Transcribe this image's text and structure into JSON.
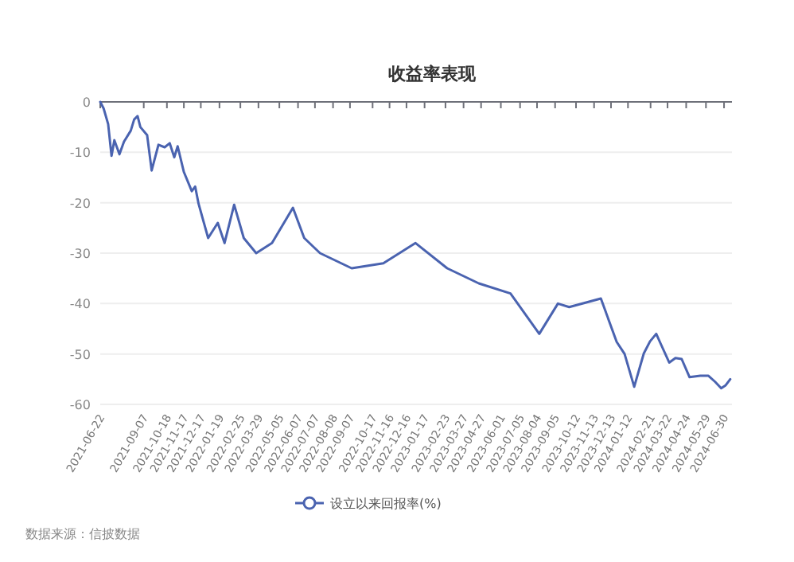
{
  "chart_data": {
    "type": "line",
    "title": "收益率表现",
    "annotations": [
      "数据来源：信披数据"
    ],
    "x": [
      "2021-06-22",
      "2021-06-28",
      "2021-07-06",
      "2021-07-12",
      "2021-07-17",
      "2021-07-26",
      "2021-08-03",
      "2021-08-15",
      "2021-08-21",
      "2021-08-27",
      "2021-09-01",
      "2021-09-13",
      "2021-09-21",
      "2021-10-03",
      "2021-10-14",
      "2021-10-23",
      "2021-10-31",
      "2021-11-06",
      "2021-11-17",
      "2021-12-01",
      "2021-12-07",
      "2021-12-13",
      "2021-12-30",
      "2022-01-16",
      "2022-01-28",
      "2022-02-14",
      "2022-03-03",
      "2022-03-25",
      "2022-04-22",
      "2022-05-29",
      "2022-06-18",
      "2022-07-16",
      "2022-09-10",
      "2022-11-05",
      "2023-01-01",
      "2023-02-26",
      "2023-04-23",
      "2023-06-18",
      "2023-08-08",
      "2023-09-10",
      "2023-09-30",
      "2023-11-25",
      "2023-12-23",
      "2024-01-06",
      "2024-01-23",
      "2024-02-09",
      "2024-02-20",
      "2024-03-02",
      "2024-03-10",
      "2024-03-25",
      "2024-04-05",
      "2024-04-16",
      "2024-04-30",
      "2024-05-19",
      "2024-06-02",
      "2024-06-14",
      "2024-06-25",
      "2024-07-03",
      "2024-07-11"
    ],
    "series": [
      {
        "name": "设立以来回报率(%)",
        "color": "#4a63b0",
        "values": [
          0,
          -1.3,
          -4.4,
          -10.7,
          -7.6,
          -10.4,
          -7.9,
          -5.7,
          -3.5,
          -2.8,
          -5,
          -6.6,
          -13.6,
          -8.5,
          -9,
          -8.2,
          -11,
          -8.8,
          -13.9,
          -17.7,
          -16.8,
          -20.2,
          -27,
          -24,
          -28,
          -20.4,
          -27,
          -30,
          -28,
          -21,
          -27,
          -30,
          -33,
          -32,
          -28,
          -33,
          -36,
          -38,
          -46,
          -40,
          -40.7,
          -39,
          -47.6,
          -50,
          -56.5,
          -49.9,
          -47.5,
          -46,
          -48,
          -51.7,
          -50.8,
          -51,
          -54.6,
          -54.3,
          -54.3,
          -55.5,
          -56.8,
          -56.2,
          -55
        ]
      }
    ],
    "xlim": [
      "2021-06-22",
      "2024-07-14"
    ],
    "xticks": [
      "2021-06-22",
      "2021-09-07",
      "2021-10-18",
      "2021-11-17",
      "2021-12-17",
      "2022-01-19",
      "2022-02-25",
      "2022-03-29",
      "2022-05-05",
      "2022-06-07",
      "2022-07-07",
      "2022-08-08",
      "2022-09-07",
      "2022-10-17",
      "2022-11-16",
      "2022-12-16",
      "2023-01-17",
      "2023-02-23",
      "2023-03-27",
      "2023-04-27",
      "2023-06-01",
      "2023-07-05",
      "2023-08-04",
      "2023-09-05",
      "2023-10-12",
      "2023-11-13",
      "2023-12-13",
      "2024-01-12",
      "2024-02-21",
      "2024-03-22",
      "2024-04-24",
      "2024-05-29",
      "2024-06-30"
    ],
    "ylim": [
      -60,
      0
    ],
    "yticks": [
      0,
      -10,
      -20,
      -30,
      -40,
      -50,
      -60
    ],
    "grid": "y",
    "legend": "bottom",
    "marker": "none",
    "line_style": "solid"
  }
}
